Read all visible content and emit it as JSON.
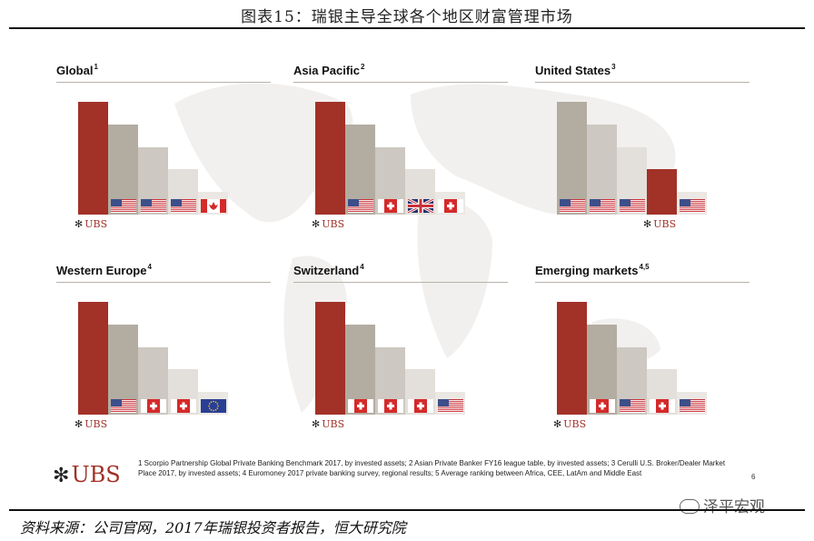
{
  "title": "图表15：瑞银主导全球各个地区财富管理市场",
  "source": "资料来源：公司官网，2017年瑞银投资者报告，恒大研究院",
  "watermark": "泽平宏观",
  "brand": "UBS",
  "keys_glyph": "✻",
  "footnote": "1 Scorpio Partnership Global Private Banking Benchmark 2017, by invested assets; 2 Asian Private Banker FY16 league table, by invested assets; 3 Cerulli U.S. Broker/Dealer Market Place 2017, by invested assets; 4 Euromoney 2017 private banking survey, regional results; 5 Average ranking between Africa, CEE, LatAm and Middle East",
  "page_number": "6",
  "colors": {
    "ubs_red": "#a23127",
    "gray_dark": "#b3aca1",
    "gray_mid": "#cdc8c1",
    "gray_light": "#e3dfda",
    "gray_lightest": "#ebe8e4"
  },
  "chart_data": [
    {
      "type": "bar",
      "title": "Global",
      "note_ref": "1",
      "categories": [
        "UBS",
        "US bank",
        "US bank",
        "US bank",
        "Canadian bank"
      ],
      "flags": [
        "ubs",
        "us",
        "us",
        "us",
        "ca"
      ],
      "ranks": [
        1,
        2,
        3,
        4,
        5
      ],
      "values": [
        5,
        4,
        3,
        2,
        1
      ],
      "highlight_index": 0
    },
    {
      "type": "bar",
      "title": "Asia Pacific",
      "note_ref": "2",
      "categories": [
        "UBS",
        "US bank",
        "Swiss bank",
        "UK bank",
        "Swiss bank"
      ],
      "flags": [
        "ubs",
        "us",
        "ch",
        "uk",
        "ch"
      ],
      "ranks": [
        1,
        2,
        3,
        4,
        5
      ],
      "values": [
        5,
        4,
        3,
        2,
        1
      ],
      "highlight_index": 0
    },
    {
      "type": "bar",
      "title": "United States",
      "note_ref": "3",
      "categories": [
        "US bank",
        "US bank",
        "US bank",
        "UBS",
        "US bank"
      ],
      "flags": [
        "us",
        "us",
        "us",
        "ubs",
        "us"
      ],
      "ranks": [
        1,
        2,
        3,
        4,
        5
      ],
      "values": [
        5,
        4,
        3,
        2,
        1
      ],
      "highlight_index": 3
    },
    {
      "type": "bar",
      "title": "Western Europe",
      "note_ref": "4",
      "categories": [
        "UBS",
        "US bank",
        "Swiss bank",
        "Swiss bank",
        "European bank"
      ],
      "flags": [
        "ubs",
        "us",
        "ch",
        "ch",
        "eu"
      ],
      "ranks": [
        1,
        2,
        3,
        4,
        5
      ],
      "values": [
        5,
        4,
        3,
        2,
        1
      ],
      "highlight_index": 0
    },
    {
      "type": "bar",
      "title": "Switzerland",
      "note_ref": "4",
      "categories": [
        "UBS",
        "Swiss bank",
        "Swiss bank",
        "Swiss bank",
        "US bank"
      ],
      "flags": [
        "ubs",
        "ch",
        "ch",
        "ch",
        "us"
      ],
      "ranks": [
        1,
        2,
        3,
        4,
        5
      ],
      "values": [
        5,
        4,
        3,
        2,
        1
      ],
      "highlight_index": 0
    },
    {
      "type": "bar",
      "title": "Emerging markets",
      "note_ref": "4,5",
      "categories": [
        "UBS",
        "Swiss bank",
        "US bank",
        "Swiss bank",
        "US bank"
      ],
      "flags": [
        "ubs",
        "ch",
        "us",
        "ch",
        "us"
      ],
      "ranks": [
        1,
        2,
        3,
        4,
        5
      ],
      "values": [
        5,
        4,
        3,
        2,
        1
      ],
      "highlight_index": 0
    }
  ]
}
